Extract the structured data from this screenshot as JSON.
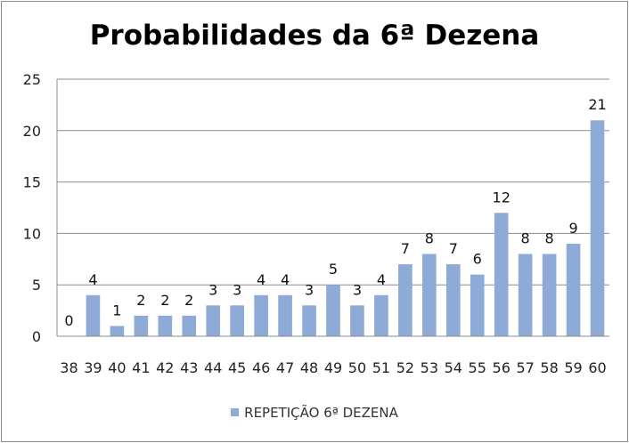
{
  "chart_data": {
    "type": "bar",
    "title": "Probabilidades da 6ª Dezena",
    "categories": [
      "38",
      "39",
      "40",
      "41",
      "42",
      "43",
      "44",
      "45",
      "46",
      "47",
      "48",
      "49",
      "50",
      "51",
      "52",
      "53",
      "54",
      "55",
      "56",
      "57",
      "58",
      "59",
      "60"
    ],
    "series": [
      {
        "name": "REPETIÇÃO 6ª DEZENA",
        "values": [
          0,
          4,
          1,
          2,
          2,
          2,
          3,
          3,
          4,
          4,
          3,
          5,
          3,
          4,
          7,
          8,
          7,
          6,
          12,
          8,
          8,
          9,
          21
        ],
        "color": "#8eaad6"
      }
    ],
    "yticks": [
      "0",
      "5",
      "10",
      "15",
      "20",
      "25"
    ],
    "ylim": [
      0,
      25
    ],
    "grid": true,
    "data_labels": true,
    "legend_position": "bottom"
  }
}
